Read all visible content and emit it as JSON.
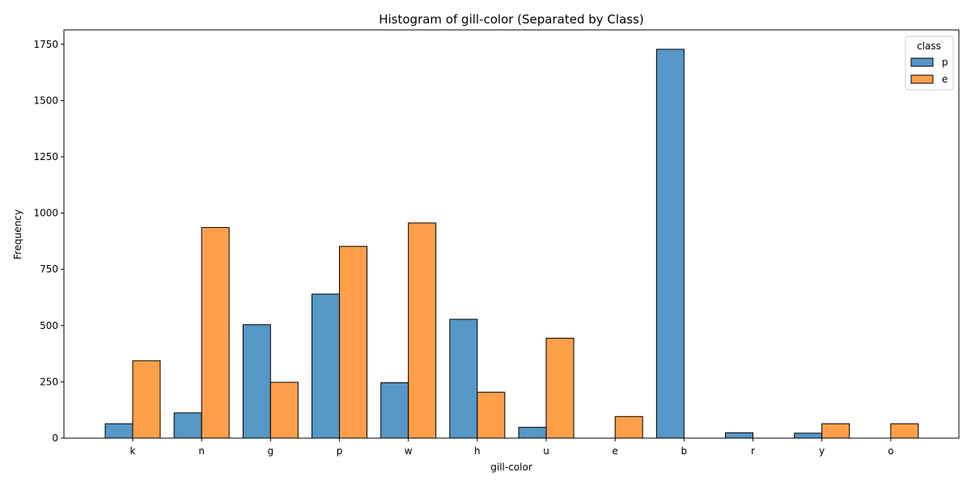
{
  "chart_data": {
    "type": "bar",
    "title": "Histogram of gill-color (Separated by Class)",
    "xlabel": "gill-color",
    "ylabel": "Frequency",
    "categories": [
      "k",
      "n",
      "g",
      "p",
      "w",
      "h",
      "u",
      "e",
      "b",
      "r",
      "y",
      "o"
    ],
    "series": [
      {
        "name": "p",
        "color": "#5597C6",
        "values": [
          64,
          112,
          504,
          640,
          246,
          528,
          48,
          0,
          1728,
          24,
          22,
          0
        ]
      },
      {
        "name": "e",
        "color": "#FF9F4A",
        "values": [
          344,
          936,
          248,
          852,
          956,
          204,
          444,
          96,
          0,
          0,
          64,
          64
        ]
      }
    ],
    "ylim": [
      0,
      1814
    ],
    "yticks": [
      0,
      250,
      500,
      750,
      1000,
      1250,
      1500,
      1750
    ],
    "grid": false,
    "legend": {
      "title": "class",
      "placement": "top-right"
    }
  }
}
